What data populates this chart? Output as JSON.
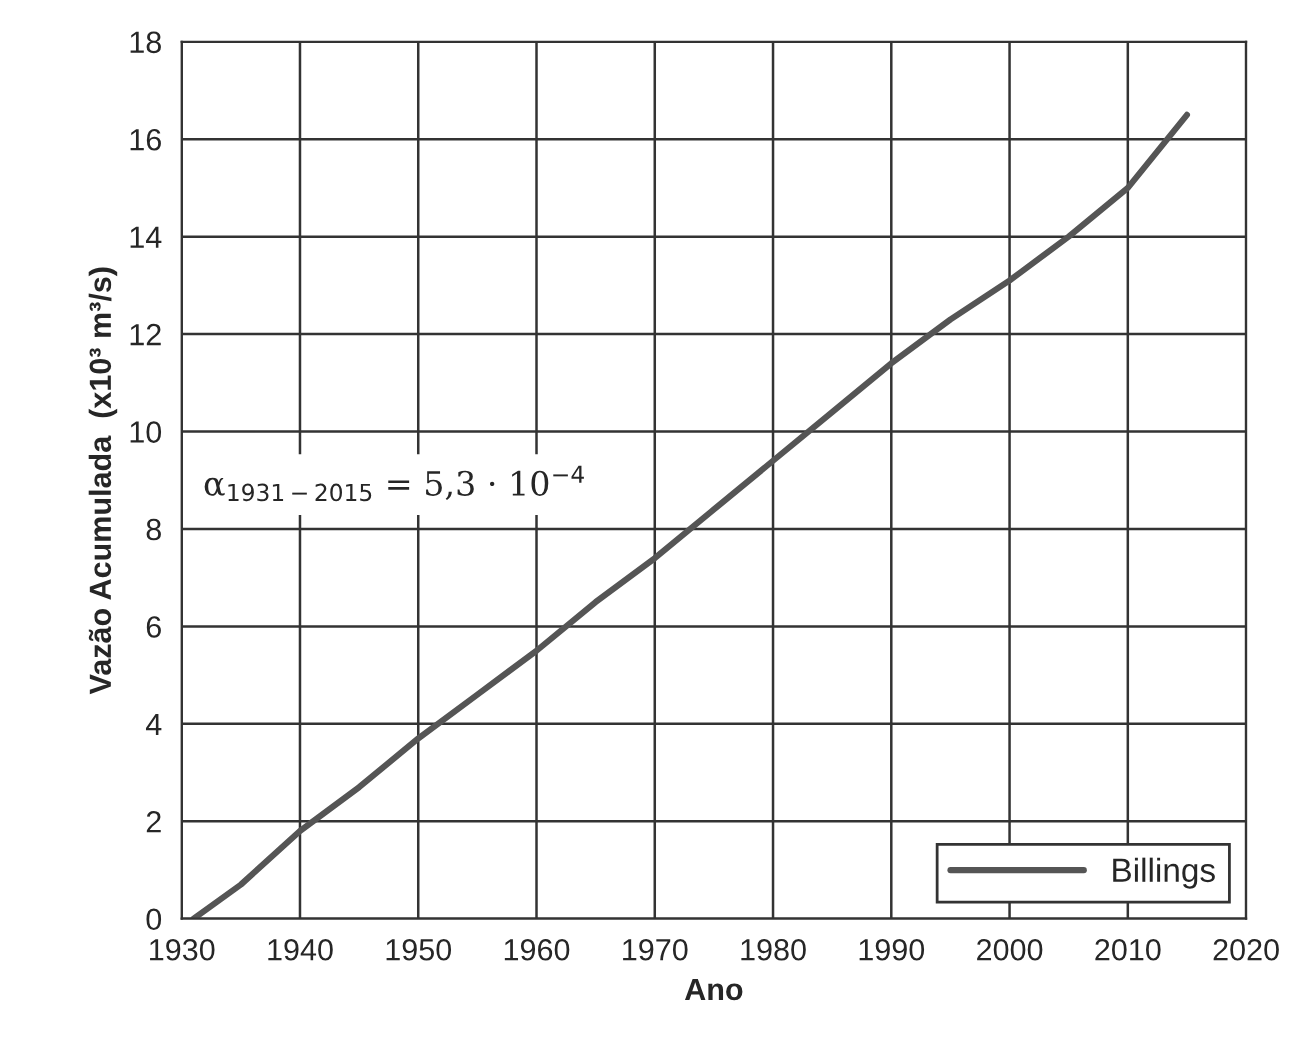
{
  "chart_data": {
    "type": "line",
    "xlabel": "Ano",
    "ylabel": "Vazão Acumulada  (x10³ m³/s)",
    "x": [
      1931,
      1935,
      1940,
      1945,
      1950,
      1955,
      1960,
      1965,
      1970,
      1975,
      1980,
      1985,
      1990,
      1995,
      2000,
      2005,
      2010,
      2015
    ],
    "series": [
      {
        "name": "Billings",
        "color": "#555555",
        "values": [
          0,
          0.7,
          1.8,
          2.7,
          3.7,
          4.6,
          5.5,
          6.5,
          7.4,
          8.4,
          9.4,
          10.4,
          11.4,
          12.3,
          13.1,
          14.0,
          15.0,
          16.5
        ]
      }
    ],
    "annotations": [
      "α$_{1931−2015}$ = 5,3 · 10$^{−4}$"
    ],
    "xlim": [
      1930,
      2020
    ],
    "xticks": [
      1930,
      1940,
      1950,
      1960,
      1970,
      1980,
      1990,
      2000,
      2010,
      2020
    ],
    "ylim": [
      0,
      18
    ],
    "yticks": [
      0,
      2,
      4,
      6,
      8,
      10,
      12,
      14,
      16,
      18
    ],
    "grid": true,
    "legend": "bottom right",
    "marker": "none",
    "line_style": "solid"
  }
}
